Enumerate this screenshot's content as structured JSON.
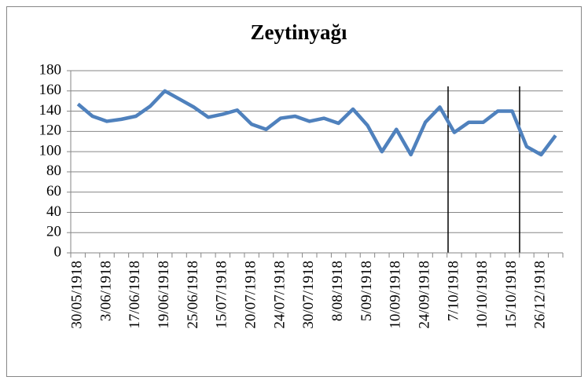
{
  "chart_data": {
    "type": "line",
    "title": "Zeytinyağı",
    "categories": [
      "30/05/1918",
      null,
      "3/06/1918",
      null,
      "17/06/1918",
      null,
      "19/06/1918",
      null,
      "25/06/1918",
      null,
      "15/07/1918",
      null,
      "20/07/1918",
      null,
      "24/07/1918",
      null,
      "30/07/1918",
      null,
      "8/08/1918",
      null,
      "5/09/1918",
      null,
      "10/09/1918",
      null,
      "24/09/1918",
      null,
      "7/10/1918",
      null,
      "10/10/1918",
      null,
      "15/10/1918",
      null,
      "26/12/1918",
      null
    ],
    "series": [
      {
        "name": "Zeytinyağı",
        "color": "#4f81bd",
        "values": [
          147,
          135,
          130,
          132,
          135,
          145,
          160,
          152,
          144,
          134,
          137,
          141,
          127,
          122,
          133,
          135,
          130,
          133,
          128,
          142,
          126,
          100,
          122,
          97,
          129,
          144,
          119,
          129,
          129,
          140,
          140,
          105,
          97,
          116
        ]
      }
    ],
    "ylim": [
      0,
      180
    ],
    "yticks": [
      0,
      20,
      40,
      60,
      80,
      100,
      120,
      140,
      160,
      180
    ],
    "grid": true
  }
}
